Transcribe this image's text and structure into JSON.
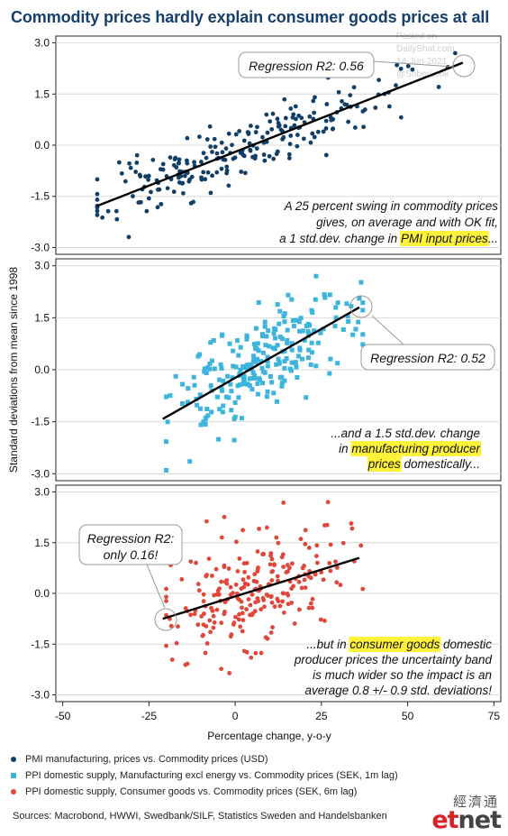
{
  "title": "Commodity prices hardly explain consumer goods prices at all",
  "watermark": [
    "Posted on",
    "DailyShot.com",
    "14-Jun-2021",
    "@SoberLook"
  ],
  "sources": "Sources: Macrobond, HWWI, Swedbank/SILF, Statistics Sweden and Handelsbanken",
  "logo": {
    "chinese": "經濟通",
    "text_et": "et",
    "text_net": "net"
  },
  "colors": {
    "title": "#173f6b",
    "series1": "#123f66",
    "series2": "#3db4dc",
    "series3": "#e0473b",
    "highlight": "#fff23a"
  },
  "annotations": {
    "panel1_reg": "Regression R2: 0.56",
    "panel1_text": [
      [
        {
          "t": "A 25 percent swing in commodity prices"
        }
      ],
      [
        {
          "t": "gives, on average and with OK fit,"
        }
      ],
      [
        {
          "t": "a 1 std.dev. change in "
        },
        {
          "t": "PMI input prices",
          "hl": true
        },
        {
          "t": "..."
        }
      ]
    ],
    "panel2_reg": "Regression R2: 0.52",
    "panel2_text": [
      [
        {
          "t": "...and a 1.5 std.dev. change"
        }
      ],
      [
        {
          "t": "in "
        },
        {
          "t": "manufacturing producer",
          "hl": true
        }
      ],
      [
        {
          "t": "prices",
          "hl": true
        },
        {
          "t": " domestically..."
        }
      ]
    ],
    "panel3_reg": [
      "Regression R2:",
      "only 0.16!"
    ],
    "panel3_text": [
      [
        {
          "t": "...but in "
        },
        {
          "t": "consumer goods",
          "hl": true
        },
        {
          "t": " domestic"
        }
      ],
      [
        {
          "t": "producer prices the uncertainty band"
        }
      ],
      [
        {
          "t": "is much wider so the impact is an"
        }
      ],
      [
        {
          "t": "average 0.8 +/- 0.9 std. deviations!"
        }
      ]
    ]
  },
  "chart_data": {
    "type": "scatter",
    "xlabel": "Percentage change, y-o-y",
    "ylabel": "Standard deviations from mean since 1998",
    "xlim": [
      -52,
      77
    ],
    "xticks": [
      -50,
      -25,
      0,
      25,
      50,
      75
    ],
    "ylim": [
      -3.2,
      3.2
    ],
    "yticks": [
      -3.0,
      -1.5,
      0.0,
      1.5,
      3.0
    ],
    "ytick_labels": [
      "-3.0",
      "-1.5",
      "0.0",
      "1.5",
      "3.0"
    ],
    "grid": "horizontal",
    "panels": [
      {
        "series": "PMI manufacturing, prices vs. Commodity prices (USD)",
        "marker": "circle",
        "color": "#123f66",
        "fit": [
          [
            -40,
            -1.78
          ],
          [
            66,
            2.42
          ]
        ],
        "r2": 0.56,
        "cloud": {
          "n": 235,
          "x_range": [
            -40,
            66
          ],
          "x_center": 0,
          "x_spread": 22,
          "slope": 0.0396,
          "intercept": -0.19,
          "resid_sd": 0.45,
          "seed": 11
        }
      },
      {
        "series": "PPI domestic supply, Manufacturing excl energy vs. Commodity prices (SEK, 1m lag)",
        "marker": "square",
        "color": "#3db4dc",
        "fit": [
          [
            -21,
            -1.42
          ],
          [
            36,
            1.8
          ]
        ],
        "r2": 0.52,
        "cloud": {
          "n": 240,
          "x_range": [
            -20,
            37
          ],
          "x_center": 7,
          "x_spread": 13,
          "slope": 0.0565,
          "intercept": -0.23,
          "resid_sd": 0.7,
          "seed": 23
        }
      },
      {
        "series": "PPI domestic supply, Consumer goods vs. Commodity prices (SEK, 6m lag)",
        "marker": "circle",
        "color": "#e0473b",
        "fit": [
          [
            -21,
            -0.75
          ],
          [
            36,
            1.05
          ]
        ],
        "r2": 0.16,
        "cloud": {
          "n": 240,
          "x_range": [
            -20,
            37
          ],
          "x_center": 7,
          "x_spread": 13,
          "slope": 0.0316,
          "intercept": -0.09,
          "resid_sd": 0.8,
          "seed": 37
        }
      }
    ]
  }
}
